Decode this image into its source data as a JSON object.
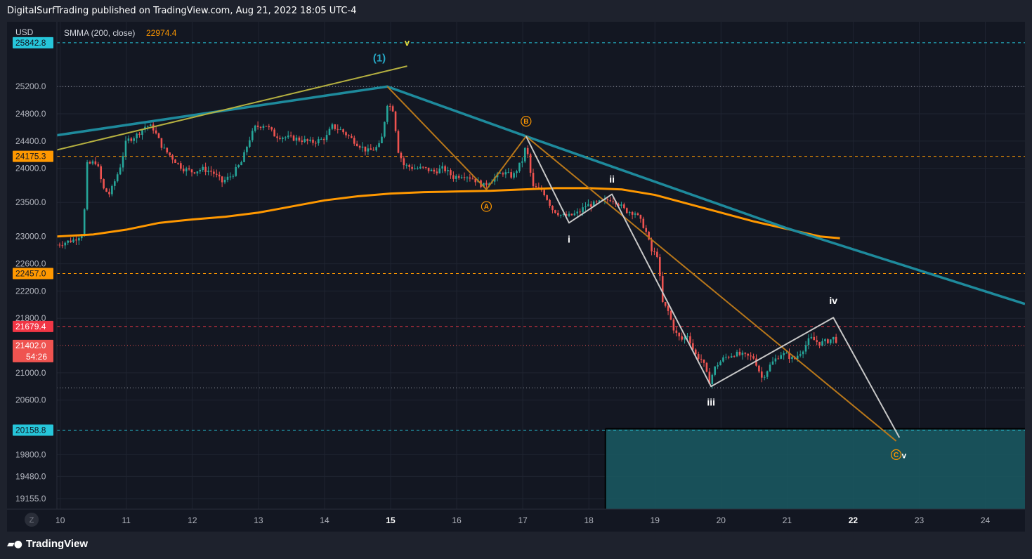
{
  "header": {
    "publish_text": "DigitalSurfTrading published on TradingView.com, Aug 21, 2022 18:05 UTC-4"
  },
  "legend": {
    "currency": "USD",
    "indicator_label": "SMMA (200, close)",
    "indicator_value": "22974.4"
  },
  "footer": {
    "brand": "TradingView",
    "logo_icon": "tradingview-logo-icon"
  },
  "timezone_button": "Z",
  "colors": {
    "background": "#131722",
    "up_candle": "#26a69a",
    "down_candle": "#ef5350",
    "smma": "#ff9800",
    "wave_trend": "#1e8a9c",
    "wave_channel": "#b5b040",
    "abc_line": "#b8771a",
    "impulse_line": "#c8c8c8",
    "target_zone": "#1a5b63"
  },
  "chart_data": {
    "type": "candlestick",
    "symbol_currency": "USD",
    "xlim": [
      9.95,
      24.6
    ],
    "ylim": [
      19000,
      26150
    ],
    "x_ticks": [
      {
        "x": 10,
        "label": "10",
        "bold": false
      },
      {
        "x": 11,
        "label": "11",
        "bold": false
      },
      {
        "x": 12,
        "label": "12",
        "bold": false
      },
      {
        "x": 13,
        "label": "13",
        "bold": false
      },
      {
        "x": 14,
        "label": "14",
        "bold": false
      },
      {
        "x": 15,
        "label": "15",
        "bold": true
      },
      {
        "x": 16,
        "label": "16",
        "bold": false
      },
      {
        "x": 17,
        "label": "17",
        "bold": false
      },
      {
        "x": 18,
        "label": "18",
        "bold": false
      },
      {
        "x": 19,
        "label": "19",
        "bold": false
      },
      {
        "x": 20,
        "label": "20",
        "bold": false
      },
      {
        "x": 21,
        "label": "21",
        "bold": false
      },
      {
        "x": 22,
        "label": "22",
        "bold": true
      },
      {
        "x": 23,
        "label": "23",
        "bold": false
      },
      {
        "x": 24,
        "label": "24",
        "bold": false
      }
    ],
    "y_ticks": [
      {
        "value": 25200,
        "label": "25200.0"
      },
      {
        "value": 24800,
        "label": "24800.0"
      },
      {
        "value": 24400,
        "label": "24400.0"
      },
      {
        "value": 24000,
        "label": "24000.0"
      },
      {
        "value": 23500,
        "label": "23500.0"
      },
      {
        "value": 23000,
        "label": "23000.0"
      },
      {
        "value": 22600,
        "label": "22600.0"
      },
      {
        "value": 22200,
        "label": "22200.0"
      },
      {
        "value": 21800,
        "label": "21800.0"
      },
      {
        "value": 21000,
        "label": "21000.0"
      },
      {
        "value": 20600,
        "label": "20600.0"
      },
      {
        "value": 19800,
        "label": "19800.0"
      },
      {
        "value": 19480,
        "label": "19480.0"
      },
      {
        "value": 19155,
        "label": "19155.0"
      }
    ],
    "price_badges": [
      {
        "value": 25842.8,
        "label": "25842.8",
        "bg": "#26c6da",
        "fg": "#131722",
        "line": "#26c6da",
        "dash": "4,4"
      },
      {
        "value": 24175.3,
        "label": "24175.3",
        "bg": "#ff9800",
        "fg": "#131722",
        "line": "#ff9800",
        "dash": "4,4"
      },
      {
        "value": 22457.0,
        "label": "22457.0",
        "bg": "#ff9800",
        "fg": "#131722",
        "line": "#ff9800",
        "dash": "4,4"
      },
      {
        "value": 21679.4,
        "label": "21679.4",
        "bg": "#f23645",
        "fg": "#ffffff",
        "line": "#f23645",
        "dash": "4,4"
      },
      {
        "value": 21402.0,
        "label": "21402.0",
        "sublabel": "54:26",
        "bg": "#ef5350",
        "fg": "#ffffff",
        "line": "#ef5350",
        "dash": "1,3"
      },
      {
        "value": 20158.8,
        "label": "20158.8",
        "bg": "#26c6da",
        "fg": "#131722",
        "line": "#26c6da",
        "dash": "4,4"
      }
    ],
    "horizontal_lines": [
      {
        "value": 25200,
        "color": "#9598a1",
        "dash": "1,3"
      },
      {
        "value": 20780,
        "color": "#9598a1",
        "dash": "1,3"
      }
    ],
    "smma": {
      "name": "SMMA (200, close)",
      "points": [
        [
          9.95,
          23000
        ],
        [
          10.5,
          23030
        ],
        [
          11.0,
          23100
        ],
        [
          11.5,
          23200
        ],
        [
          12.0,
          23250
        ],
        [
          12.5,
          23290
        ],
        [
          13.0,
          23350
        ],
        [
          13.5,
          23440
        ],
        [
          14.0,
          23530
        ],
        [
          14.5,
          23590
        ],
        [
          15.0,
          23630
        ],
        [
          15.5,
          23650
        ],
        [
          16.0,
          23660
        ],
        [
          16.5,
          23670
        ],
        [
          17.0,
          23690
        ],
        [
          17.5,
          23710
        ],
        [
          18.0,
          23710
        ],
        [
          18.5,
          23690
        ],
        [
          19.0,
          23610
        ],
        [
          19.5,
          23480
        ],
        [
          20.0,
          23350
        ],
        [
          20.5,
          23220
        ],
        [
          21.0,
          23110
        ],
        [
          21.5,
          23000
        ],
        [
          21.8,
          22974
        ]
      ]
    },
    "trend_lines": [
      {
        "name": "wave-trend",
        "color": "#1e8a9c",
        "width": 3.5,
        "points": [
          [
            9.95,
            24485
          ],
          [
            14.95,
            25200
          ],
          [
            17.05,
            24470
          ],
          [
            21.0,
            23120
          ],
          [
            24.6,
            22010
          ]
        ]
      },
      {
        "name": "wave-channel",
        "color": "#b5b040",
        "width": 2,
        "points": [
          [
            9.95,
            24270
          ],
          [
            15.25,
            25500
          ]
        ]
      },
      {
        "name": "abc-corrective",
        "color": "#b8771a",
        "width": 2,
        "points": [
          [
            14.95,
            25200
          ],
          [
            16.45,
            23690
          ],
          [
            17.05,
            24470
          ],
          [
            22.65,
            20000
          ]
        ]
      },
      {
        "name": "impulse-path",
        "color": "#c8c8c8",
        "width": 2,
        "points": [
          [
            17.05,
            24470
          ],
          [
            17.7,
            23200
          ],
          [
            18.35,
            23620
          ],
          [
            19.85,
            20800
          ],
          [
            21.7,
            21810
          ],
          [
            22.7,
            20050
          ]
        ]
      }
    ],
    "target_zone": {
      "x_start": 18.25,
      "x_end": 24.6,
      "y_top": 20180,
      "y_bottom": 19000
    },
    "wave_labels": [
      {
        "text": "(1)",
        "x": 14.83,
        "y": 25620,
        "color": "#26a8c6",
        "size": 15
      },
      {
        "text": "v",
        "x": 15.25,
        "y": 25850,
        "color": "#e3d93a",
        "size": 13
      },
      {
        "text": "B",
        "x": 17.05,
        "y": 24690,
        "color": "#ff9800",
        "size": 10,
        "circled": true
      },
      {
        "text": "A",
        "x": 16.45,
        "y": 23440,
        "color": "#ff9800",
        "size": 10,
        "circled": true
      },
      {
        "text": "ii",
        "x": 18.35,
        "y": 23840,
        "color": "#ffffff",
        "size": 14
      },
      {
        "text": "i",
        "x": 17.7,
        "y": 22960,
        "color": "#ffffff",
        "size": 14
      },
      {
        "text": "iii",
        "x": 19.85,
        "y": 20570,
        "color": "#ffffff",
        "size": 14
      },
      {
        "text": "iv",
        "x": 21.7,
        "y": 22060,
        "color": "#ffffff",
        "size": 14
      },
      {
        "text": "C",
        "x": 22.65,
        "y": 19800,
        "color": "#ff9800",
        "size": 10,
        "circled": true
      },
      {
        "text": "v",
        "x": 22.77,
        "y": 19800,
        "color": "#ffffff",
        "size": 12
      }
    ],
    "price_path": [
      [
        9.95,
        22880
      ],
      [
        10.2,
        22950
      ],
      [
        10.35,
        23050
      ],
      [
        10.4,
        24050
      ],
      [
        10.55,
        24100
      ],
      [
        10.65,
        23700
      ],
      [
        10.75,
        23620
      ],
      [
        10.9,
        24000
      ],
      [
        11.0,
        24400
      ],
      [
        11.15,
        24480
      ],
      [
        11.3,
        24630
      ],
      [
        11.4,
        24600
      ],
      [
        11.55,
        24300
      ],
      [
        11.7,
        24150
      ],
      [
        11.85,
        24000
      ],
      [
        12.0,
        23950
      ],
      [
        12.15,
        23990
      ],
      [
        12.3,
        23950
      ],
      [
        12.45,
        23800
      ],
      [
        12.6,
        23900
      ],
      [
        12.75,
        24100
      ],
      [
        12.85,
        24400
      ],
      [
        12.95,
        24600
      ],
      [
        13.1,
        24650
      ],
      [
        13.25,
        24480
      ],
      [
        13.45,
        24450
      ],
      [
        13.6,
        24430
      ],
      [
        13.8,
        24380
      ],
      [
        13.95,
        24420
      ],
      [
        14.05,
        24480
      ],
      [
        14.1,
        24620
      ],
      [
        14.25,
        24560
      ],
      [
        14.35,
        24480
      ],
      [
        14.5,
        24360
      ],
      [
        14.65,
        24250
      ],
      [
        14.75,
        24280
      ],
      [
        14.85,
        24350
      ],
      [
        14.95,
        24950
      ],
      [
        15.05,
        24850
      ],
      [
        15.1,
        24300
      ],
      [
        15.2,
        24050
      ],
      [
        15.35,
        24000
      ],
      [
        15.5,
        24000
      ],
      [
        15.65,
        23950
      ],
      [
        15.8,
        24000
      ],
      [
        15.95,
        23870
      ],
      [
        16.1,
        23910
      ],
      [
        16.25,
        23850
      ],
      [
        16.4,
        23740
      ],
      [
        16.55,
        23850
      ],
      [
        16.7,
        23940
      ],
      [
        16.85,
        23880
      ],
      [
        17.0,
        24130
      ],
      [
        17.05,
        24350
      ],
      [
        17.15,
        23720
      ],
      [
        17.3,
        23680
      ],
      [
        17.45,
        23400
      ],
      [
        17.6,
        23300
      ],
      [
        17.7,
        23300
      ],
      [
        17.85,
        23350
      ],
      [
        17.95,
        23450
      ],
      [
        18.1,
        23480
      ],
      [
        18.25,
        23520
      ],
      [
        18.35,
        23560
      ],
      [
        18.45,
        23480
      ],
      [
        18.55,
        23380
      ],
      [
        18.7,
        23350
      ],
      [
        18.85,
        23120
      ],
      [
        18.95,
        22780
      ],
      [
        19.05,
        22720
      ],
      [
        19.1,
        22050
      ],
      [
        19.2,
        21900
      ],
      [
        19.3,
        21600
      ],
      [
        19.4,
        21480
      ],
      [
        19.5,
        21560
      ],
      [
        19.6,
        21280
      ],
      [
        19.72,
        21180
      ],
      [
        19.82,
        20860
      ],
      [
        19.92,
        21100
      ],
      [
        20.05,
        21220
      ],
      [
        20.2,
        21280
      ],
      [
        20.35,
        21250
      ],
      [
        20.5,
        21220
      ],
      [
        20.62,
        20920
      ],
      [
        20.75,
        21120
      ],
      [
        20.9,
        21280
      ],
      [
        21.0,
        21260
      ],
      [
        21.1,
        21190
      ],
      [
        21.25,
        21360
      ],
      [
        21.35,
        21510
      ],
      [
        21.5,
        21430
      ],
      [
        21.62,
        21470
      ],
      [
        21.72,
        21520
      ],
      [
        21.78,
        21402
      ]
    ],
    "last_price": 21402.0,
    "countdown": "54:26"
  }
}
